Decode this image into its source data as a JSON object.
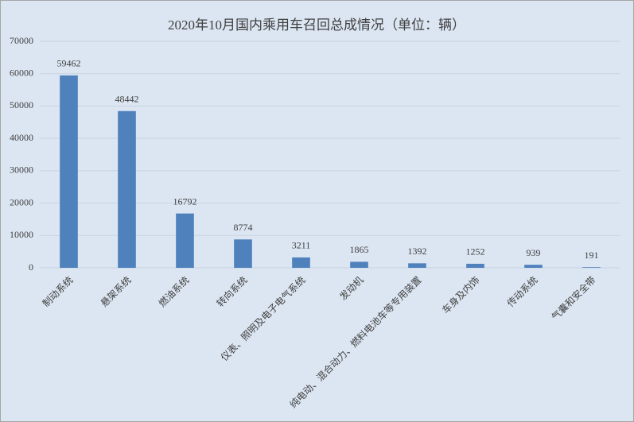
{
  "chart_data": {
    "type": "bar",
    "title": "2020年10月国内乘用车召回总成情况（单位：辆）",
    "categories": [
      "制动系统",
      "悬架系统",
      "燃油系统",
      "转向系统",
      "仪表、照明及电子电气系统",
      "发动机",
      "纯电动、混合动力、燃料电池车等专用装置",
      "车身及内饰",
      "传动系统",
      "气囊和安全带"
    ],
    "values": [
      59462,
      48442,
      16792,
      8774,
      3211,
      1865,
      1392,
      1252,
      939,
      191
    ],
    "color": "#4f81bd",
    "ylim": [
      0,
      70000
    ],
    "yticks": [
      0,
      10000,
      20000,
      30000,
      40000,
      50000,
      60000,
      70000
    ],
    "grid": true
  }
}
